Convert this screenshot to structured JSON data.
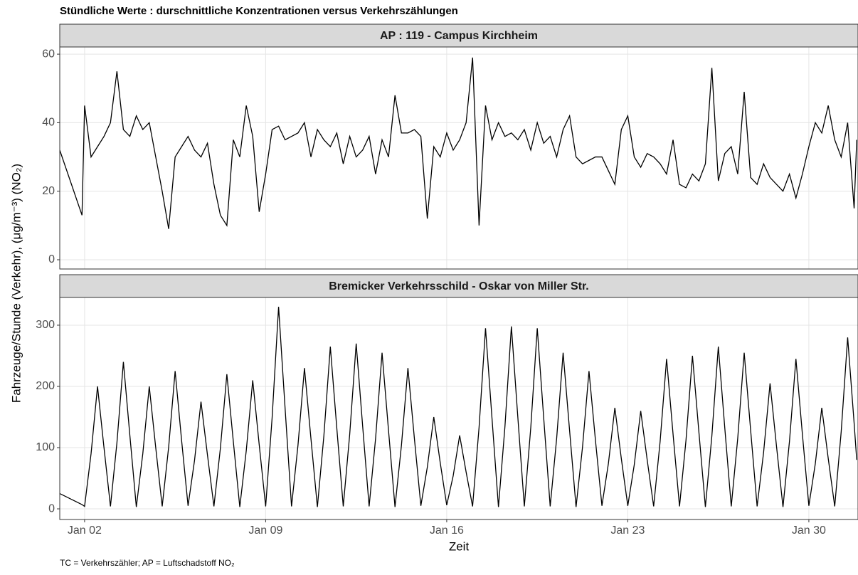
{
  "title": "Stündliche Werte : durschnittliche Konzentrationen versus Verkehrszählungen",
  "y_label": "Fahrzeuge/Stunde (Verkehr), (μg/m⁻³) (NO₂)",
  "x_label": "Zeit",
  "caption": "TC = Verkehrszähler; AP = Luftschadstoff NO₂",
  "chart_data": [
    {
      "type": "line",
      "title": "AP : 119 - Campus Kirchheim",
      "color": "#000000",
      "grid": true,
      "xlim": [
        1.04,
        31.9
      ],
      "ylim": [
        -2.7,
        62.1
      ],
      "yticks": [
        0,
        20,
        40,
        60
      ],
      "x": [
        1.04,
        1.9,
        2,
        2.25,
        2.5,
        2.75,
        3,
        3.25,
        3.5,
        3.75,
        4,
        4.25,
        4.5,
        4.75,
        5,
        5.25,
        5.5,
        5.75,
        6,
        6.25,
        6.5,
        6.75,
        7,
        7.25,
        7.5,
        7.75,
        8,
        8.25,
        8.5,
        8.75,
        9,
        9.25,
        9.5,
        9.75,
        10,
        10.25,
        10.5,
        10.75,
        11,
        11.25,
        11.5,
        11.75,
        12,
        12.25,
        12.5,
        12.75,
        13,
        13.25,
        13.5,
        13.75,
        14,
        14.25,
        14.5,
        14.75,
        15,
        15.25,
        15.5,
        15.75,
        16,
        16.25,
        16.5,
        16.75,
        17,
        17.25,
        17.5,
        17.75,
        18,
        18.25,
        18.5,
        18.75,
        19,
        19.25,
        19.5,
        19.75,
        20,
        20.25,
        20.5,
        20.75,
        21,
        21.25,
        21.5,
        21.75,
        22,
        22.25,
        22.5,
        22.75,
        23,
        23.25,
        23.5,
        23.75,
        24,
        24.25,
        24.5,
        24.75,
        25,
        25.25,
        25.5,
        25.75,
        26,
        26.25,
        26.5,
        26.75,
        27,
        27.25,
        27.5,
        27.75,
        28,
        28.25,
        28.5,
        28.75,
        29,
        29.25,
        29.5,
        29.75,
        30,
        30.25,
        30.5,
        30.75,
        31,
        31.25,
        31.5,
        31.75,
        31.85
      ],
      "values": [
        32,
        13,
        45,
        30,
        33,
        36,
        40,
        55,
        38,
        36,
        42,
        38,
        40,
        30,
        20,
        9,
        30,
        33,
        36,
        32,
        30,
        34,
        22,
        13,
        10,
        35,
        30,
        45,
        36,
        14,
        25,
        38,
        39,
        35,
        36,
        37,
        40,
        30,
        38,
        35,
        33,
        37,
        28,
        36,
        30,
        32,
        36,
        25,
        35,
        30,
        48,
        37,
        37,
        38,
        36,
        12,
        33,
        30,
        37,
        32,
        35,
        40,
        59,
        10,
        45,
        35,
        40,
        36,
        37,
        35,
        38,
        32,
        40,
        34,
        36,
        30,
        38,
        42,
        30,
        28,
        29,
        30,
        30,
        26,
        22,
        38,
        42,
        30,
        27,
        31,
        30,
        28,
        25,
        35,
        22,
        21,
        25,
        23,
        28,
        56,
        23,
        31,
        33,
        25,
        49,
        24,
        22,
        28,
        24,
        22,
        20,
        25,
        18,
        25,
        33,
        40,
        37,
        45,
        35,
        30,
        40,
        15,
        35
      ]
    },
    {
      "type": "line",
      "title": "Bremicker Verkehrsschild - Oskar von Miller Str.",
      "color": "#000000",
      "grid": true,
      "xlim": [
        1.04,
        31.9
      ],
      "ylim": [
        -17.4,
        345.3
      ],
      "yticks": [
        0,
        100,
        200,
        300
      ],
      "xticks": [
        {
          "value": 2,
          "label": "Jan 02"
        },
        {
          "value": 9,
          "label": "Jan 09"
        },
        {
          "value": 16,
          "label": "Jan 16"
        },
        {
          "value": 23,
          "label": "Jan 23"
        },
        {
          "value": 30,
          "label": "Jan 30"
        }
      ],
      "x": [
        1.04,
        1.9,
        2,
        2.25,
        2.5,
        2.75,
        3,
        3.25,
        3.5,
        3.75,
        4,
        4.25,
        4.5,
        4.75,
        5,
        5.25,
        5.5,
        5.75,
        6,
        6.25,
        6.5,
        6.75,
        7,
        7.25,
        7.5,
        7.75,
        8,
        8.25,
        8.5,
        8.75,
        9,
        9.25,
        9.5,
        9.75,
        10,
        10.25,
        10.5,
        10.75,
        11,
        11.25,
        11.5,
        11.75,
        12,
        12.25,
        12.5,
        12.75,
        13,
        13.25,
        13.5,
        13.75,
        14,
        14.25,
        14.5,
        14.75,
        15,
        15.25,
        15.5,
        15.75,
        16,
        16.25,
        16.5,
        16.75,
        17,
        17.25,
        17.5,
        17.75,
        18,
        18.25,
        18.5,
        18.75,
        19,
        19.25,
        19.5,
        19.75,
        20,
        20.25,
        20.5,
        20.75,
        21,
        21.25,
        21.5,
        21.75,
        22,
        22.25,
        22.5,
        22.75,
        23,
        23.25,
        23.5,
        23.75,
        24,
        24.25,
        24.5,
        24.75,
        25,
        25.25,
        25.5,
        25.75,
        26,
        26.25,
        26.5,
        26.75,
        27,
        27.25,
        27.5,
        27.75,
        28,
        28.25,
        28.5,
        28.75,
        29,
        29.25,
        29.5,
        29.75,
        30,
        30.25,
        30.5,
        30.75,
        31,
        31.25,
        31.5,
        31.75,
        31.85
      ],
      "values": [
        25,
        7,
        4,
        90,
        200,
        100,
        4,
        108,
        240,
        120,
        3,
        90,
        200,
        100,
        4,
        101,
        225,
        112,
        5,
        79,
        175,
        88,
        4,
        99,
        220,
        110,
        3,
        95,
        210,
        105,
        4,
        149,
        330,
        165,
        4,
        104,
        230,
        115,
        3,
        119,
        265,
        132,
        4,
        122,
        270,
        135,
        4,
        115,
        255,
        128,
        3,
        104,
        230,
        115,
        5,
        68,
        150,
        75,
        6,
        54,
        120,
        60,
        4,
        133,
        295,
        148,
        3,
        134,
        298,
        149,
        4,
        133,
        295,
        148,
        4,
        115,
        255,
        128,
        3,
        101,
        225,
        112,
        5,
        74,
        165,
        82,
        5,
        72,
        160,
        80,
        4,
        110,
        245,
        122,
        4,
        112,
        250,
        125,
        3,
        119,
        265,
        132,
        4,
        115,
        255,
        128,
        4,
        92,
        205,
        102,
        3,
        110,
        245,
        122,
        5,
        74,
        165,
        82,
        4,
        126,
        280,
        140,
        80
      ]
    }
  ]
}
